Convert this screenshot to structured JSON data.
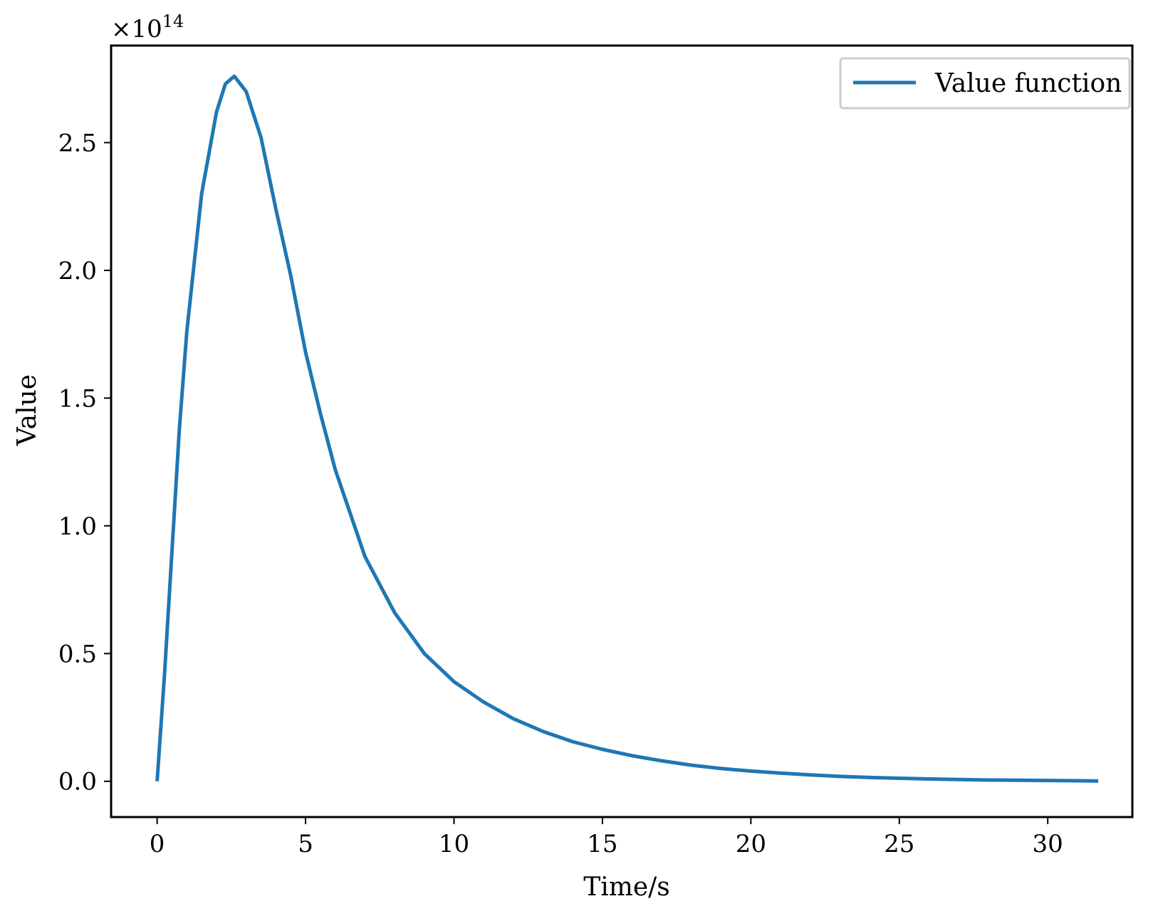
{
  "chart_data": {
    "type": "line",
    "title": "",
    "xlabel": "Time/s",
    "ylabel": "Value",
    "y_scale_label": "×10",
    "y_scale_exponent": "14",
    "xlim": [
      -1.55,
      32.85
    ],
    "ylim": [
      -0.14,
      2.88
    ],
    "x_ticks": [
      0,
      5,
      10,
      15,
      20,
      25,
      30
    ],
    "x_tick_labels": [
      "0",
      "5",
      "10",
      "15",
      "20",
      "25",
      "30"
    ],
    "y_ticks": [
      0.0,
      0.5,
      1.0,
      1.5,
      2.0,
      2.5
    ],
    "y_tick_labels": [
      "0.0",
      "0.5",
      "1.0",
      "1.5",
      "2.0",
      "2.5"
    ],
    "grid": false,
    "legend": {
      "position": "top-right"
    },
    "series": [
      {
        "name": "Value function",
        "color": "#1f77b4",
        "x": [
          0,
          0.25,
          0.5,
          0.75,
          1.0,
          1.5,
          2.0,
          2.3,
          2.6,
          3.0,
          3.5,
          4.0,
          4.5,
          5.0,
          5.5,
          6.0,
          7.0,
          8.0,
          9.0,
          10.0,
          11.0,
          12.0,
          13.0,
          14.0,
          15.0,
          16.0,
          17.0,
          18.0,
          19.0,
          20.0,
          21.0,
          22.0,
          23.0,
          24.0,
          25.0,
          26.0,
          27.0,
          28.0,
          29.0,
          30.0,
          31.0,
          31.7
        ],
        "y": [
          0.0,
          0.42,
          0.9,
          1.38,
          1.76,
          2.3,
          2.62,
          2.73,
          2.76,
          2.7,
          2.52,
          2.24,
          1.98,
          1.68,
          1.44,
          1.22,
          0.88,
          0.66,
          0.5,
          0.39,
          0.31,
          0.245,
          0.195,
          0.155,
          0.125,
          0.1,
          0.08,
          0.063,
          0.05,
          0.04,
          0.032,
          0.025,
          0.019,
          0.015,
          0.012,
          0.009,
          0.007,
          0.005,
          0.004,
          0.003,
          0.002,
          0.001
        ]
      }
    ]
  }
}
